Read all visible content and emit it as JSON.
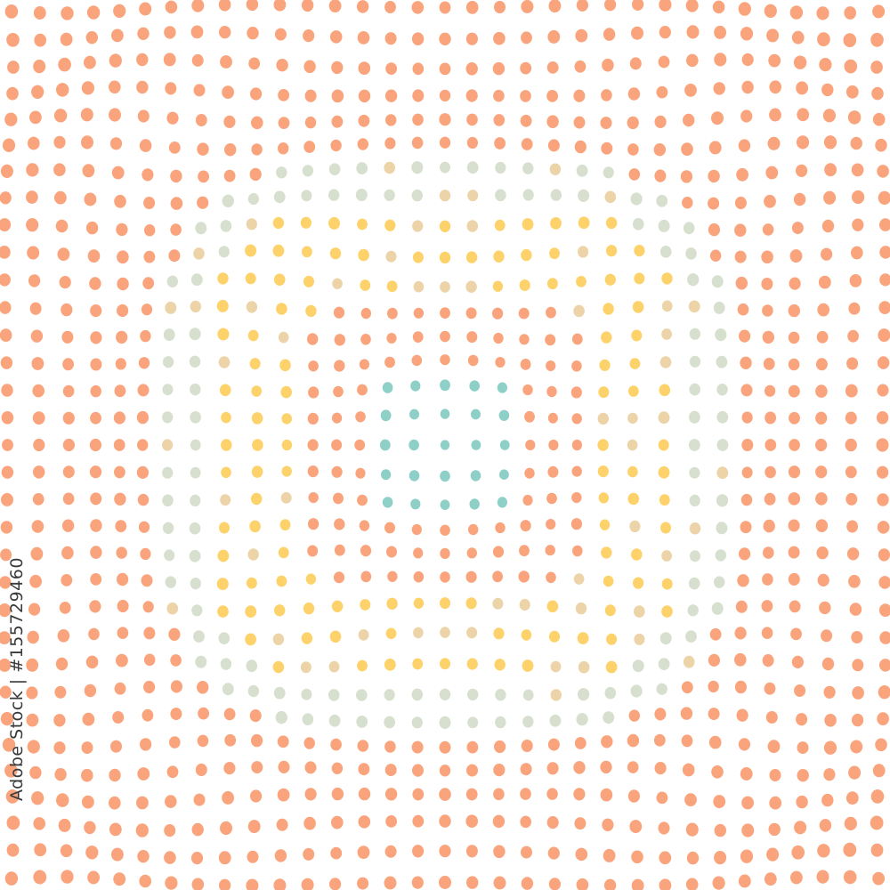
{
  "image": {
    "subject": "concentric dotted halftone pattern",
    "palette": {
      "orange": "#F9A47C",
      "yellow": "#FDD26A",
      "teal": "#8ED0C7",
      "sage": "#D7E0CE",
      "tan": "#ECD3A8",
      "background": "#FFFFFF"
    }
  },
  "watermark": {
    "text": "Adobe Stock | #155729460"
  }
}
